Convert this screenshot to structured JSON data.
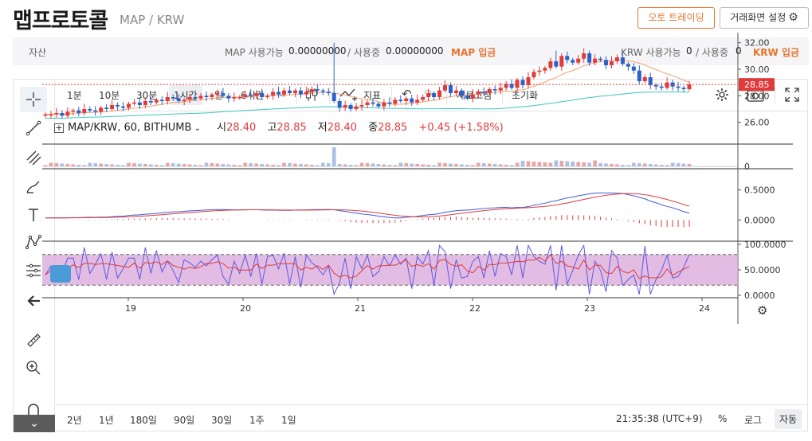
{
  "header": {
    "title": "맵프로토콜",
    "pair": "MAP / KRW",
    "auto_trade_label": "오토 트레이딩",
    "screen_settings_label": "거래화면 설정"
  },
  "asset_bar": {
    "label": "자산",
    "map_avail_label": "MAP 사용가능",
    "map_avail": "0.00000000",
    "map_used_label": "/ 사용중",
    "map_used": "0.00000000",
    "map_deposit": "MAP 입금",
    "krw_avail_label": "KRW 사용가능",
    "krw_avail": "0",
    "krw_used_label": "/ 사용중",
    "krw_used": "0",
    "krw_deposit": "KRW 입금"
  },
  "toolbar": {
    "intervals": [
      "1분",
      "10분",
      "30분",
      "1시간",
      "일",
      "6시간"
    ],
    "selected_interval": "1시간",
    "indicator_label": "지표",
    "refresh_label": "새로고침",
    "reset_label": "초기화"
  },
  "legend": {
    "symbol": "MAP/KRW, 60, BITHUMB",
    "open_label": "시",
    "open": "28.40",
    "high_label": "고",
    "high": "28.85",
    "low_label": "저",
    "low": "28.40",
    "close_label": "종",
    "close": "28.85",
    "change": "+0.45 (+1.58%)"
  },
  "bottom": {
    "ranges": [
      "2년",
      "1년",
      "180일",
      "90일",
      "30일",
      "1주",
      "1일"
    ],
    "time": "21:35:38 (UTC+9)",
    "percent_label": "%",
    "log_label": "로그",
    "auto_label": "자동"
  },
  "colors": {
    "up": "#e03b3b",
    "down": "#2a62c9",
    "accent": "#e8732c",
    "rsi_band": "#d9a5d9"
  },
  "chart_data": {
    "type": "line",
    "x_labels": [
      "19",
      "20",
      "21",
      "22",
      "23",
      "24"
    ],
    "price_axis": [
      "32.00",
      "30.00",
      "28.00",
      "26.00"
    ],
    "last_price": "28.85",
    "volume_axis": [
      "0"
    ],
    "macd_axis": [
      "0.5000",
      "0.0000"
    ],
    "rsi_axis": [
      "100.0000",
      "50.0000",
      "0.0000"
    ],
    "price_ylim": [
      24.6,
      32.4
    ],
    "series": [
      {
        "values": [
          26.6,
          26.6,
          26.7,
          26.5,
          26.8,
          26.9,
          26.7,
          27.0,
          26.9,
          26.8,
          27.1,
          27.0,
          27.3,
          27.2,
          27.1,
          27.4,
          27.5,
          27.3,
          27.6,
          27.5,
          27.7,
          27.6,
          27.9,
          27.8,
          27.6,
          27.7,
          27.9,
          27.8,
          28.0,
          27.9,
          28.1,
          28.2,
          28.0,
          27.8,
          27.9,
          27.9,
          28.1,
          28.0,
          28.2,
          27.9,
          28.0,
          28.3,
          28.1,
          28.4,
          28.2,
          28.4,
          28.1,
          28.3,
          28.5,
          28.4,
          28.3,
          28.2,
          27.6,
          27.1,
          27.3,
          27.0,
          27.2,
          27.3,
          27.5,
          27.4,
          27.2,
          27.5,
          27.4,
          27.7,
          27.6,
          27.8,
          27.5,
          27.7,
          27.9,
          28.2,
          27.9,
          28.4,
          28.8,
          28.2,
          28.4,
          28.0,
          27.8,
          28.1,
          28.3,
          28.2,
          28.5,
          28.4,
          28.6,
          28.9,
          28.6,
          29.2,
          28.8,
          29.4,
          29.8,
          29.9,
          30.1,
          30.6,
          30.2,
          31.0,
          30.7,
          30.5,
          30.8,
          31.2,
          30.5,
          30.8,
          30.7,
          30.3,
          30.6,
          30.9,
          30.4,
          30.2,
          29.9,
          29.1,
          29.4,
          28.8,
          28.7,
          28.6,
          29.0,
          28.7,
          28.6,
          28.5,
          28.85
        ]
      }
    ]
  }
}
